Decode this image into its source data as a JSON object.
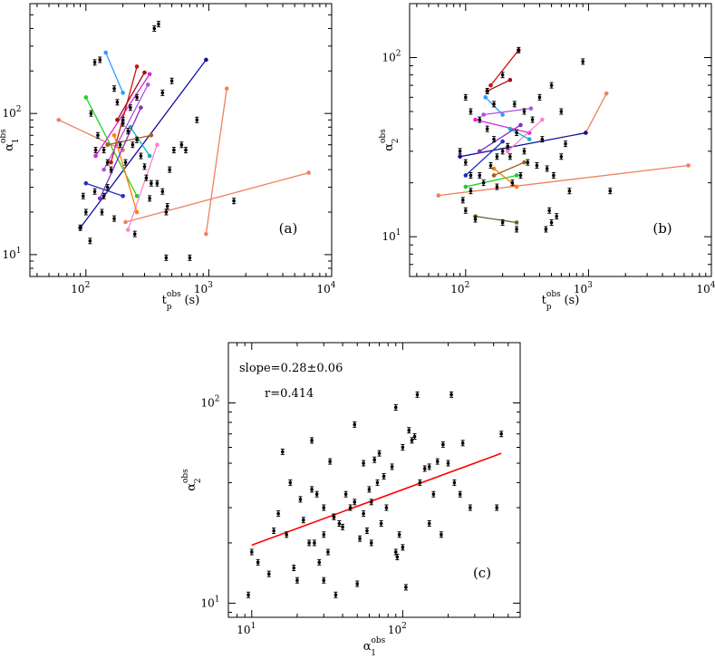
{
  "chart_data": [
    {
      "type": "scatter",
      "id": "a",
      "panel_label": "(a)",
      "xlabel": {
        "base": "t",
        "sub": "p",
        "sup": "obs",
        "unit": "(s)"
      },
      "ylabel": {
        "base": "α",
        "sub": "1",
        "sup": "obs"
      },
      "xscale": "log",
      "yscale": "log",
      "xlim": [
        35,
        10000
      ],
      "ylim": [
        7,
        600
      ],
      "xticks": [
        {
          "value": 100,
          "label": "10",
          "exp": "2"
        },
        {
          "value": 1000,
          "label": "10",
          "exp": "3"
        },
        {
          "value": 10000,
          "label": "10",
          "exp": "4"
        }
      ],
      "yticks": [
        {
          "value": 10,
          "label": "10",
          "exp": "1"
        },
        {
          "value": 100,
          "label": "10",
          "exp": "2"
        }
      ],
      "points": [
        [
          118,
          230
        ],
        [
          130,
          240
        ],
        [
          110,
          100
        ],
        [
          125,
          70
        ],
        [
          140,
          55
        ],
        [
          150,
          45
        ],
        [
          160,
          40
        ],
        [
          118,
          28
        ],
        [
          135,
          20
        ],
        [
          108,
          12.5
        ],
        [
          95,
          26
        ],
        [
          170,
          150
        ],
        [
          180,
          120
        ],
        [
          200,
          90
        ],
        [
          220,
          75
        ],
        [
          240,
          60
        ],
        [
          260,
          65
        ],
        [
          280,
          50
        ],
        [
          300,
          42
        ],
        [
          310,
          35
        ],
        [
          340,
          32
        ],
        [
          360,
          400
        ],
        [
          390,
          430
        ],
        [
          420,
          140
        ],
        [
          500,
          170
        ],
        [
          520,
          55
        ],
        [
          380,
          32
        ],
        [
          420,
          28
        ],
        [
          450,
          20
        ],
        [
          460,
          22
        ],
        [
          480,
          40
        ],
        [
          600,
          60
        ],
        [
          650,
          55
        ],
        [
          1600,
          24
        ],
        [
          450,
          9.5
        ],
        [
          700,
          9.5
        ],
        [
          250,
          14
        ],
        [
          800,
          90
        ],
        [
          200,
          85
        ],
        [
          230,
          110
        ],
        [
          260,
          130
        ],
        [
          190,
          60
        ],
        [
          210,
          45
        ],
        [
          150,
          30
        ],
        [
          140,
          26
        ],
        [
          330,
          25
        ],
        [
          100,
          20
        ],
        [
          90,
          15.5
        ],
        [
          170,
          18
        ],
        [
          120,
          55
        ]
      ],
      "series": [
        {
          "name": "coral-long",
          "color": "#f08060",
          "x": [
            60,
            200
          ],
          "y": [
            90,
            55
          ]
        },
        {
          "name": "coral-low",
          "color": "#f08060",
          "x": [
            210,
            6500
          ],
          "y": [
            17,
            38
          ]
        },
        {
          "name": "coral-steep",
          "color": "#f08060",
          "x": [
            950,
            1400
          ],
          "y": [
            14,
            150
          ]
        },
        {
          "name": "navy-diag",
          "color": "#1010a0",
          "x": [
            90,
            950
          ],
          "y": [
            15.5,
            240
          ]
        },
        {
          "name": "blue-short",
          "color": "#2030c0",
          "x": [
            100,
            200
          ],
          "y": [
            32,
            26
          ]
        },
        {
          "name": "green",
          "color": "#20d020",
          "x": [
            100,
            260
          ],
          "y": [
            130,
            26
          ]
        },
        {
          "name": "sky",
          "color": "#3399ff",
          "x": [
            145,
            200
          ],
          "y": [
            270,
            140
          ]
        },
        {
          "name": "magenta",
          "color": "#e020e0",
          "x": [
            120,
            330
          ],
          "y": [
            50,
            190
          ]
        },
        {
          "name": "red",
          "color": "#d01010",
          "x": [
            160,
            260
          ],
          "y": [
            45,
            215
          ]
        },
        {
          "name": "pink",
          "color": "#ff80d0",
          "x": [
            220,
            380
          ],
          "y": [
            15,
            60
          ]
        },
        {
          "name": "orange",
          "color": "#ff8000",
          "x": [
            170,
            260
          ],
          "y": [
            70,
            20
          ]
        },
        {
          "name": "darkred",
          "color": "#a01010",
          "x": [
            180,
            300
          ],
          "y": [
            90,
            195
          ]
        },
        {
          "name": "violet",
          "color": "#b050e0",
          "x": [
            140,
            320
          ],
          "y": [
            40,
            160
          ]
        },
        {
          "name": "teal",
          "color": "#10b0c0",
          "x": [
            230,
            330
          ],
          "y": [
            80,
            50
          ]
        },
        {
          "name": "brown",
          "color": "#a06020",
          "x": [
            150,
            340
          ],
          "y": [
            60,
            70
          ]
        },
        {
          "name": "purple",
          "color": "#8030c0",
          "x": [
            130,
            280
          ],
          "y": [
            25,
            110
          ]
        }
      ]
    },
    {
      "type": "scatter",
      "id": "b",
      "panel_label": "(b)",
      "xlabel": {
        "base": "t",
        "sub": "p",
        "sup": "obs",
        "unit": "(s)"
      },
      "ylabel": {
        "base": "α",
        "sub": "2",
        "sup": "obs"
      },
      "xscale": "log",
      "yscale": "log",
      "xlim": [
        35,
        10000
      ],
      "ylim": [
        6,
        200
      ],
      "xticks": [
        {
          "value": 100,
          "label": "10",
          "exp": "2"
        },
        {
          "value": 1000,
          "label": "10",
          "exp": "3"
        },
        {
          "value": 10000,
          "label": "10",
          "exp": "4"
        }
      ],
      "yticks": [
        {
          "value": 10,
          "label": "10",
          "exp": "1"
        },
        {
          "value": 100,
          "label": "10",
          "exp": "2"
        }
      ],
      "points": [
        [
          100,
          60
        ],
        [
          110,
          50
        ],
        [
          130,
          45
        ],
        [
          150,
          40
        ],
        [
          170,
          35
        ],
        [
          200,
          30
        ],
        [
          230,
          28
        ],
        [
          250,
          55
        ],
        [
          300,
          50
        ],
        [
          350,
          45
        ],
        [
          400,
          60
        ],
        [
          500,
          70
        ],
        [
          600,
          50
        ],
        [
          900,
          95
        ],
        [
          1500,
          18
        ],
        [
          700,
          18
        ],
        [
          480,
          14
        ],
        [
          500,
          12
        ],
        [
          550,
          13
        ],
        [
          450,
          11
        ],
        [
          260,
          11
        ],
        [
          200,
          12
        ],
        [
          120,
          12.5
        ],
        [
          100,
          14
        ],
        [
          95,
          16
        ],
        [
          110,
          18
        ],
        [
          130,
          22
        ],
        [
          160,
          25
        ],
        [
          180,
          28
        ],
        [
          220,
          32
        ],
        [
          260,
          38
        ],
        [
          300,
          30
        ],
        [
          320,
          26
        ],
        [
          280,
          22
        ],
        [
          240,
          20
        ],
        [
          180,
          19
        ],
        [
          140,
          20
        ],
        [
          110,
          22
        ],
        [
          100,
          26
        ],
        [
          90,
          30
        ],
        [
          380,
          25
        ],
        [
          420,
          35
        ],
        [
          460,
          24
        ],
        [
          520,
          22
        ],
        [
          600,
          28
        ],
        [
          650,
          33
        ],
        [
          150,
          65
        ],
        [
          200,
          80
        ],
        [
          270,
          110
        ],
        [
          170,
          55
        ]
      ],
      "series": [
        {
          "name": "coral-long",
          "color": "#f08060",
          "x": [
            60,
            6500
          ],
          "y": [
            17,
            25
          ]
        },
        {
          "name": "coral-steep",
          "color": "#f08060",
          "x": [
            950,
            1400
          ],
          "y": [
            38,
            63
          ]
        },
        {
          "name": "navy",
          "color": "#1010a0",
          "x": [
            90,
            950
          ],
          "y": [
            28,
            38
          ]
        },
        {
          "name": "blue",
          "color": "#2030c0",
          "x": [
            100,
            200
          ],
          "y": [
            22,
            34
          ]
        },
        {
          "name": "green",
          "color": "#20d020",
          "x": [
            100,
            260
          ],
          "y": [
            19,
            22
          ]
        },
        {
          "name": "sky",
          "color": "#3399ff",
          "x": [
            145,
            200
          ],
          "y": [
            60,
            48
          ]
        },
        {
          "name": "magenta",
          "color": "#e020e0",
          "x": [
            120,
            330
          ],
          "y": [
            45,
            38
          ]
        },
        {
          "name": "red",
          "color": "#d01010",
          "x": [
            160,
            270
          ],
          "y": [
            70,
            110
          ]
        },
        {
          "name": "pink",
          "color": "#ff80d0",
          "x": [
            220,
            420
          ],
          "y": [
            30,
            45
          ]
        },
        {
          "name": "orange",
          "color": "#ff8000",
          "x": [
            170,
            260
          ],
          "y": [
            24,
            19
          ]
        },
        {
          "name": "darkred",
          "color": "#a01010",
          "x": [
            150,
            230
          ],
          "y": [
            65,
            75
          ]
        },
        {
          "name": "violet",
          "color": "#b050e0",
          "x": [
            140,
            340
          ],
          "y": [
            48,
            52
          ]
        },
        {
          "name": "teal",
          "color": "#10b0c0",
          "x": [
            230,
            330
          ],
          "y": [
            40,
            35
          ]
        },
        {
          "name": "olive",
          "color": "#606030",
          "x": [
            120,
            260
          ],
          "y": [
            13,
            12
          ]
        },
        {
          "name": "brown",
          "color": "#a06020",
          "x": [
            170,
            300
          ],
          "y": [
            22,
            26
          ]
        },
        {
          "name": "purple",
          "color": "#8030c0",
          "x": [
            130,
            280
          ],
          "y": [
            30,
            42
          ]
        }
      ]
    },
    {
      "type": "scatter",
      "id": "c",
      "panel_label": "(c)",
      "xlabel": {
        "base": "α",
        "sub": "1",
        "sup": "obs",
        "unit": ""
      },
      "ylabel": {
        "base": "α",
        "sub": "2",
        "sup": "obs",
        "unit": ""
      },
      "xscale": "log",
      "yscale": "log",
      "xlim": [
        7,
        600
      ],
      "ylim": [
        8.5,
        200
      ],
      "xticks": [
        {
          "value": 10,
          "label": "10",
          "exp": "1"
        },
        {
          "value": 100,
          "label": "10",
          "exp": "2"
        }
      ],
      "yticks": [
        {
          "value": 10,
          "label": "10",
          "exp": "1"
        },
        {
          "value": 100,
          "label": "10",
          "exp": "2"
        }
      ],
      "annotations": [
        "slope=0.28±0.06",
        "r=0.414"
      ],
      "fit_line": {
        "x": [
          10,
          450
        ],
        "y": [
          19.5,
          56
        ],
        "color": "#ff0000"
      },
      "points": [
        [
          9.5,
          11
        ],
        [
          10,
          18
        ],
        [
          11,
          16
        ],
        [
          13,
          14
        ],
        [
          14,
          23
        ],
        [
          15,
          28
        ],
        [
          16,
          57
        ],
        [
          17,
          22
        ],
        [
          18,
          40
        ],
        [
          19,
          15
        ],
        [
          20,
          13
        ],
        [
          21,
          33
        ],
        [
          22,
          26
        ],
        [
          24,
          20
        ],
        [
          25,
          65
        ],
        [
          25,
          37
        ],
        [
          27,
          35
        ],
        [
          28,
          16
        ],
        [
          30,
          30
        ],
        [
          30,
          13
        ],
        [
          32,
          18
        ],
        [
          33,
          51
        ],
        [
          35,
          27
        ],
        [
          36,
          11
        ],
        [
          38,
          25
        ],
        [
          40,
          24
        ],
        [
          42,
          35
        ],
        [
          45,
          30
        ],
        [
          48,
          78
        ],
        [
          50,
          12.5
        ],
        [
          52,
          21
        ],
        [
          55,
          28
        ],
        [
          58,
          23
        ],
        [
          60,
          37
        ],
        [
          62,
          32
        ],
        [
          65,
          52
        ],
        [
          68,
          40
        ],
        [
          70,
          56
        ],
        [
          72,
          25
        ],
        [
          78,
          30
        ],
        [
          85,
          48
        ],
        [
          90,
          95
        ],
        [
          92,
          17
        ],
        [
          95,
          22
        ],
        [
          100,
          19
        ],
        [
          105,
          12
        ],
        [
          110,
          73
        ],
        [
          115,
          65
        ],
        [
          120,
          68
        ],
        [
          125,
          110
        ],
        [
          130,
          40
        ],
        [
          140,
          47
        ],
        [
          150,
          25
        ],
        [
          160,
          35
        ],
        [
          170,
          51
        ],
        [
          180,
          22
        ],
        [
          185,
          62
        ],
        [
          200,
          50
        ],
        [
          210,
          110
        ],
        [
          220,
          40
        ],
        [
          240,
          35
        ],
        [
          250,
          63
        ],
        [
          280,
          30
        ],
        [
          420,
          30
        ],
        [
          450,
          70
        ],
        [
          90,
          18
        ],
        [
          75,
          43
        ],
        [
          48,
          32
        ],
        [
          30,
          22
        ],
        [
          150,
          48
        ],
        [
          35,
          27
        ],
        [
          62,
          20
        ],
        [
          26,
          20
        ],
        [
          100,
          60
        ],
        [
          55,
          50
        ]
      ]
    }
  ]
}
